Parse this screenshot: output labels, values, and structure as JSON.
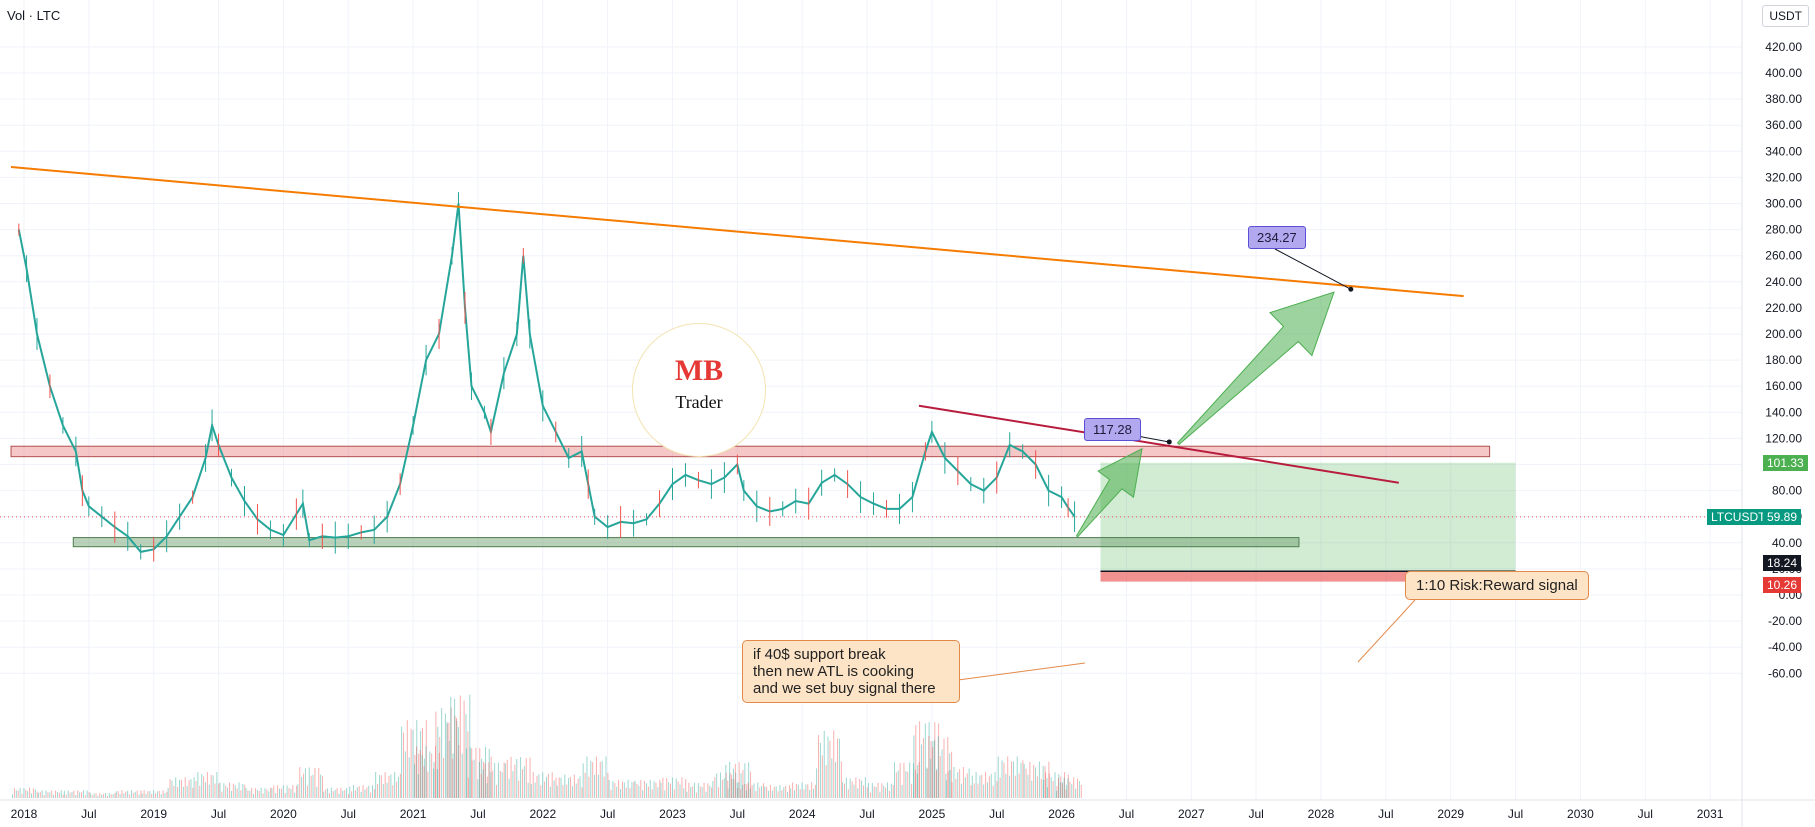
{
  "header": {
    "indicator_label": "Vol · LTC",
    "currency_unit": "USDT"
  },
  "chart_data": {
    "type": "line",
    "symbol": "LTCUSDT",
    "ylim": [
      -70,
      430
    ],
    "y_ticks": [
      420,
      400,
      380,
      360,
      340,
      320,
      300,
      280,
      260,
      240,
      220,
      200,
      180,
      160,
      140,
      120,
      100,
      80,
      60,
      40,
      20,
      0,
      -20,
      -40,
      -60
    ],
    "x_axis_range": [
      2018.0,
      2031.7
    ],
    "x_ticks": [
      {
        "x": 2018.0,
        "label": "2018"
      },
      {
        "x": 2018.5,
        "label": "Jul"
      },
      {
        "x": 2019.0,
        "label": "2019"
      },
      {
        "x": 2019.5,
        "label": "Jul"
      },
      {
        "x": 2020.0,
        "label": "2020"
      },
      {
        "x": 2020.5,
        "label": "Jul"
      },
      {
        "x": 2021.0,
        "label": "2021"
      },
      {
        "x": 2021.5,
        "label": "Jul"
      },
      {
        "x": 2022.0,
        "label": "2022"
      },
      {
        "x": 2022.5,
        "label": "Jul"
      },
      {
        "x": 2023.0,
        "label": "2023"
      },
      {
        "x": 2023.5,
        "label": "Jul"
      },
      {
        "x": 2024.0,
        "label": "2024"
      },
      {
        "x": 2024.5,
        "label": "Jul"
      },
      {
        "x": 2025.0,
        "label": "2025"
      },
      {
        "x": 2025.5,
        "label": "Jul"
      },
      {
        "x": 2026.0,
        "label": "2026"
      },
      {
        "x": 2026.5,
        "label": "Jul"
      },
      {
        "x": 2027.0,
        "label": "2027"
      },
      {
        "x": 2027.5,
        "label": "Jul"
      },
      {
        "x": 2028.0,
        "label": "2028"
      },
      {
        "x": 2028.5,
        "label": "Jul"
      },
      {
        "x": 2029.0,
        "label": "2029"
      },
      {
        "x": 2029.5,
        "label": "Jul"
      },
      {
        "x": 2030.0,
        "label": "2030"
      },
      {
        "x": 2030.5,
        "label": "Jul"
      },
      {
        "x": 2031.0,
        "label": "2031"
      }
    ],
    "price_path": [
      [
        2017.96,
        280
      ],
      [
        2018.02,
        250
      ],
      [
        2018.1,
        200
      ],
      [
        2018.2,
        160
      ],
      [
        2018.3,
        130
      ],
      [
        2018.4,
        110
      ],
      [
        2018.45,
        80
      ],
      [
        2018.5,
        68
      ],
      [
        2018.6,
        60
      ],
      [
        2018.7,
        52
      ],
      [
        2018.8,
        45
      ],
      [
        2018.9,
        33
      ],
      [
        2019.0,
        35
      ],
      [
        2019.1,
        45
      ],
      [
        2019.2,
        60
      ],
      [
        2019.3,
        75
      ],
      [
        2019.4,
        105
      ],
      [
        2019.45,
        130
      ],
      [
        2019.5,
        115
      ],
      [
        2019.6,
        90
      ],
      [
        2019.7,
        72
      ],
      [
        2019.8,
        58
      ],
      [
        2019.9,
        50
      ],
      [
        2020.0,
        46
      ],
      [
        2020.1,
        62
      ],
      [
        2020.15,
        70
      ],
      [
        2020.2,
        42
      ],
      [
        2020.3,
        45
      ],
      [
        2020.4,
        44
      ],
      [
        2020.5,
        45
      ],
      [
        2020.6,
        48
      ],
      [
        2020.7,
        50
      ],
      [
        2020.8,
        60
      ],
      [
        2020.9,
        85
      ],
      [
        2021.0,
        130
      ],
      [
        2021.1,
        180
      ],
      [
        2021.2,
        200
      ],
      [
        2021.3,
        260
      ],
      [
        2021.35,
        300
      ],
      [
        2021.4,
        220
      ],
      [
        2021.45,
        160
      ],
      [
        2021.55,
        140
      ],
      [
        2021.6,
        125
      ],
      [
        2021.7,
        170
      ],
      [
        2021.8,
        200
      ],
      [
        2021.85,
        260
      ],
      [
        2021.9,
        200
      ],
      [
        2022.0,
        145
      ],
      [
        2022.1,
        125
      ],
      [
        2022.2,
        105
      ],
      [
        2022.3,
        110
      ],
      [
        2022.35,
        85
      ],
      [
        2022.4,
        60
      ],
      [
        2022.5,
        52
      ],
      [
        2022.6,
        56
      ],
      [
        2022.7,
        55
      ],
      [
        2022.8,
        58
      ],
      [
        2022.9,
        70
      ],
      [
        2023.0,
        85
      ],
      [
        2023.1,
        92
      ],
      [
        2023.2,
        88
      ],
      [
        2023.3,
        85
      ],
      [
        2023.4,
        90
      ],
      [
        2023.5,
        100
      ],
      [
        2023.55,
        80
      ],
      [
        2023.65,
        68
      ],
      [
        2023.75,
        64
      ],
      [
        2023.85,
        66
      ],
      [
        2023.95,
        72
      ],
      [
        2024.05,
        70
      ],
      [
        2024.15,
        86
      ],
      [
        2024.25,
        92
      ],
      [
        2024.35,
        85
      ],
      [
        2024.45,
        75
      ],
      [
        2024.55,
        70
      ],
      [
        2024.65,
        66
      ],
      [
        2024.75,
        66
      ],
      [
        2024.85,
        75
      ],
      [
        2024.95,
        110
      ],
      [
        2025.0,
        125
      ],
      [
        2025.1,
        105
      ],
      [
        2025.2,
        95
      ],
      [
        2025.3,
        85
      ],
      [
        2025.4,
        80
      ],
      [
        2025.5,
        90
      ],
      [
        2025.6,
        115
      ],
      [
        2025.7,
        110
      ],
      [
        2025.8,
        100
      ],
      [
        2025.9,
        80
      ],
      [
        2026.0,
        75
      ],
      [
        2026.05,
        67
      ],
      [
        2026.1,
        60
      ]
    ],
    "volume": [
      [
        2018.0,
        4
      ],
      [
        2018.2,
        3
      ],
      [
        2018.4,
        3
      ],
      [
        2018.6,
        2
      ],
      [
        2018.8,
        3
      ],
      [
        2019.0,
        3
      ],
      [
        2019.2,
        8
      ],
      [
        2019.4,
        10
      ],
      [
        2019.6,
        6
      ],
      [
        2019.8,
        4
      ],
      [
        2020.0,
        5
      ],
      [
        2020.2,
        12
      ],
      [
        2020.4,
        4
      ],
      [
        2020.6,
        5
      ],
      [
        2020.8,
        10
      ],
      [
        2021.0,
        30
      ],
      [
        2021.1,
        20
      ],
      [
        2021.25,
        35
      ],
      [
        2021.35,
        40
      ],
      [
        2021.5,
        20
      ],
      [
        2021.6,
        14
      ],
      [
        2021.8,
        16
      ],
      [
        2022.0,
        10
      ],
      [
        2022.2,
        9
      ],
      [
        2022.4,
        16
      ],
      [
        2022.6,
        7
      ],
      [
        2022.8,
        7
      ],
      [
        2023.0,
        8
      ],
      [
        2023.2,
        6
      ],
      [
        2023.4,
        10
      ],
      [
        2023.5,
        14
      ],
      [
        2023.6,
        6
      ],
      [
        2023.8,
        5
      ],
      [
        2024.0,
        6
      ],
      [
        2024.2,
        26
      ],
      [
        2024.4,
        8
      ],
      [
        2024.6,
        6
      ],
      [
        2024.8,
        14
      ],
      [
        2024.95,
        30
      ],
      [
        2025.05,
        24
      ],
      [
        2025.2,
        12
      ],
      [
        2025.4,
        10
      ],
      [
        2025.6,
        16
      ],
      [
        2025.8,
        14
      ],
      [
        2025.95,
        10
      ],
      [
        2026.05,
        8
      ]
    ],
    "annotations": {
      "resistance_line_orange": {
        "from": [
          2017.9,
          328
        ],
        "to": [
          2029.1,
          229
        ]
      },
      "descending_line_red": {
        "from": [
          2024.9,
          145
        ],
        "to": [
          2028.6,
          86
        ]
      },
      "resistance_zone": {
        "x": [
          2017.9,
          2029.3
        ],
        "y": [
          106,
          114
        ]
      },
      "support_zone": {
        "x": [
          2018.38,
          2027.83
        ],
        "y": [
          37,
          44
        ]
      },
      "risk_reward_box": {
        "entry": 18.24,
        "target": 101.33,
        "stop": 10.26,
        "x": [
          2026.3,
          2029.5
        ]
      },
      "arrow_small": {
        "from": [
          2026.12,
          45
        ],
        "to": [
          2026.62,
          112
        ]
      },
      "arrow_large": {
        "from": [
          2026.9,
          116
        ],
        "to": [
          2028.1,
          232
        ]
      },
      "current_price_line": 59.89,
      "target_labels": [
        {
          "text": "117.28",
          "point": [
            2026.83,
            117.28
          ]
        },
        {
          "text": "234.27",
          "point": [
            2028.23,
            234.27
          ]
        }
      ],
      "callouts": [
        {
          "key": "rr_signal",
          "text": "1:10 Risk:Reward signal"
        },
        {
          "key": "support_break",
          "lines": [
            "if 40$ support break",
            "then new ATL is cooking",
            "and we set buy signal there"
          ]
        }
      ],
      "axis_tags": {
        "target": {
          "text": "101.33",
          "value": 101.33,
          "color": "#4caf50"
        },
        "current": {
          "symbol": "LTCUSDT",
          "text": "59.89",
          "value": 59.89,
          "color": "#089981"
        },
        "entry": {
          "text": "18.24",
          "value": 18.24,
          "color": "#131722"
        },
        "stop": {
          "text": "10.26",
          "value": 10.26,
          "color": "#e53935"
        }
      }
    }
  },
  "logo": {
    "letters": "MB",
    "subtitle": "Trader"
  }
}
